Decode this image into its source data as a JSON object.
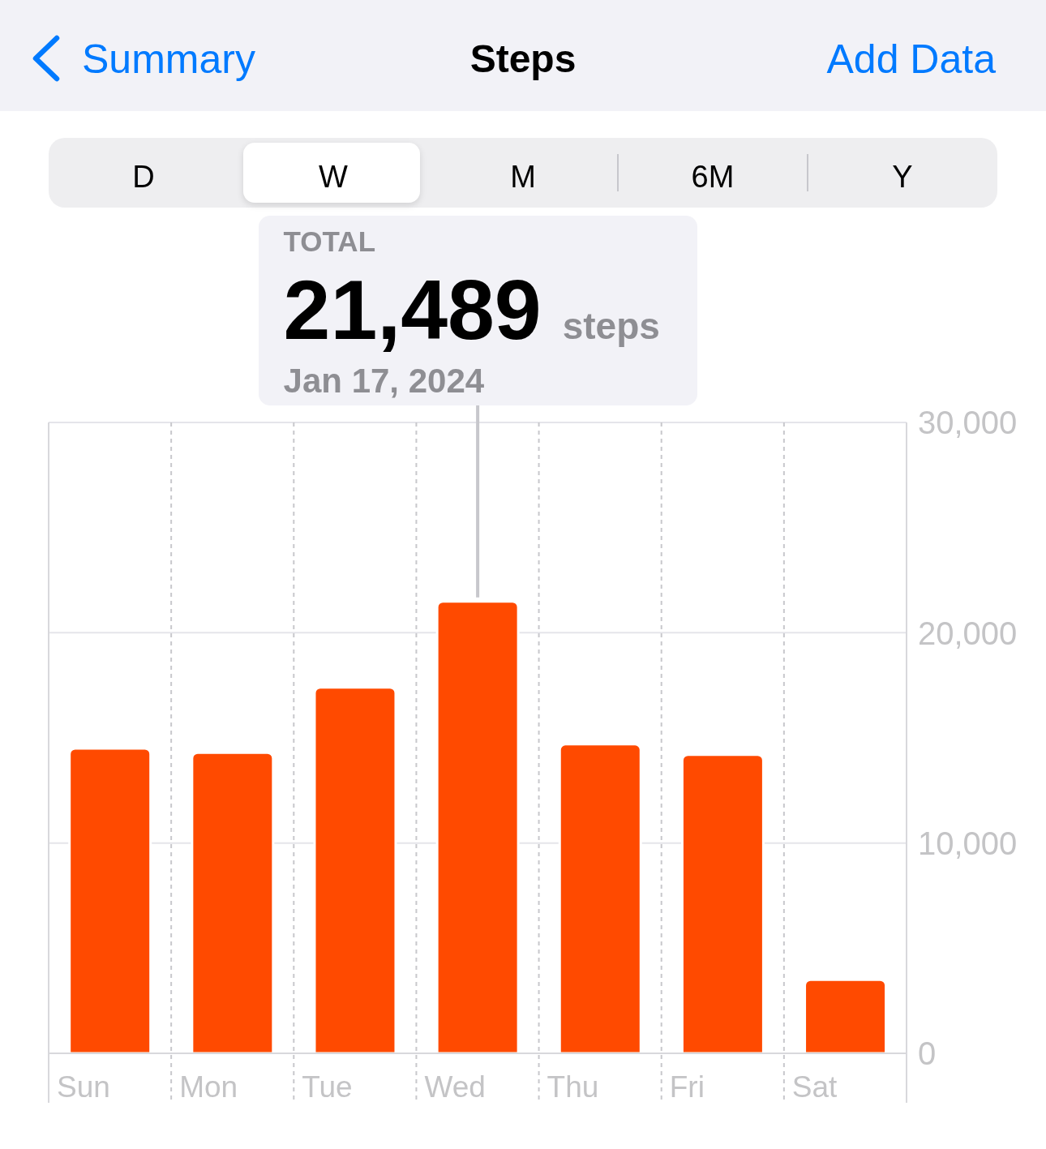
{
  "chart_data": {
    "type": "bar",
    "title": "Steps",
    "categories": [
      "Sun",
      "Mon",
      "Tue",
      "Wed",
      "Thu",
      "Fri",
      "Sat"
    ],
    "values": [
      14500,
      14300,
      17400,
      21489,
      14700,
      14200,
      3500
    ],
    "color": "#ff4a00",
    "value_labels": [
      null,
      null,
      null,
      "21,489",
      null,
      null,
      null
    ],
    "ylim": [
      0,
      30000
    ],
    "yticks": [
      0,
      {
        "value": 10000,
        "label": "10,000"
      },
      {
        "value": 20000,
        "label": "20,000"
      },
      {
        "value": 30000,
        "label": "30,000"
      }
    ],
    "grid": true,
    "annotations": [
      "Summary",
      "Add Data",
      "D",
      "W",
      "M",
      "6M",
      "Y",
      "TOTAL",
      "steps",
      "Jan 17, 2024"
    ]
  }
}
